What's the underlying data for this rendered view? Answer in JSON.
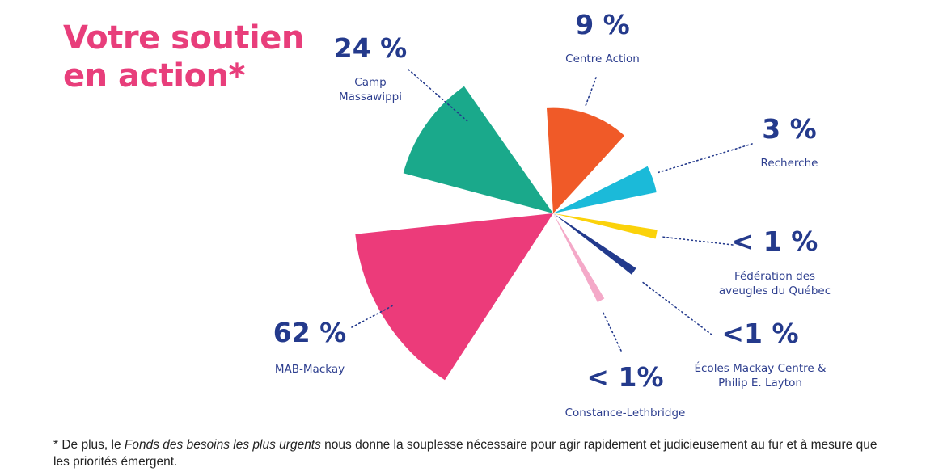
{
  "title": {
    "line1": "Votre soutien",
    "line2": "en action*"
  },
  "chart_data": {
    "type": "pie",
    "title": "Votre soutien en action*",
    "style": "polar-area (wedge radius varies)",
    "slices": [
      {
        "name": "Camp Massawippi",
        "label": "24 %",
        "value": 24,
        "color": "#1aa98b",
        "start_deg": 285,
        "end_deg": 325,
        "rel_radius": 0.78
      },
      {
        "name": "Centre Action",
        "label": "9 %",
        "value": 9,
        "color": "#f05a28",
        "start_deg": 356.5,
        "end_deg": 402.5,
        "rel_radius": 0.53
      },
      {
        "name": "Recherche",
        "label": "3 %",
        "value": 3,
        "color": "#1bbad9",
        "start_deg": 63.5,
        "end_deg": 78.5,
        "rel_radius": 0.53
      },
      {
        "name": "Fédération des aveugles du Québec",
        "label": "< 1 %",
        "value": 1,
        "color": "#fbd20a",
        "start_deg": 99,
        "end_deg": 104,
        "rel_radius": 0.53
      },
      {
        "name": "Écoles Mackay Centre & Philip E. Layton",
        "label": "<1 %",
        "value": 1,
        "color": "#223a8d",
        "start_deg": 123.5,
        "end_deg": 128,
        "rel_radius": 0.5
      },
      {
        "name": "Constance-Lethbridge",
        "label": "< 1%",
        "value": 1,
        "color": "#f4a9c8",
        "start_deg": 149,
        "end_deg": 153.5,
        "rel_radius": 0.5
      },
      {
        "name": "MAB-Mackay",
        "label": "62 %",
        "value": 62,
        "color": "#ec3b7a",
        "start_deg": 213,
        "end_deg": 264,
        "rel_radius": 1.0
      }
    ],
    "annotations": {
      "Camp Massawippi": {
        "pct": "24 %",
        "name_lines": [
          "Camp",
          "Massawippi"
        ]
      },
      "Centre Action": {
        "pct": "9 %",
        "name_lines": [
          "Centre Action"
        ]
      },
      "Recherche": {
        "pct": "3 %",
        "name_lines": [
          "Recherche"
        ]
      },
      "Fédération des aveugles du Québec": {
        "pct": "< 1 %",
        "name_lines": [
          "Fédération des",
          "aveugles du Québec"
        ]
      },
      "Écoles Mackay Centre & Philip E. Layton": {
        "pct": "<1 %",
        "name_lines": [
          "Écoles Mackay Centre &",
          "Philip E. Layton"
        ]
      },
      "Constance-Lethbridge": {
        "pct": "< 1%",
        "name_lines": [
          "Constance-Lethbridge"
        ]
      },
      "MAB-Mackay": {
        "pct": "62 %",
        "name_lines": [
          "MAB-Mackay"
        ]
      }
    },
    "leader_line_color": "#243a8c"
  },
  "footnote": {
    "prefix": "* De plus, le ",
    "italic": "Fonds des besoins les plus urgents",
    "suffix": " nous donne la souplesse nécessaire pour agir rapidement et judicieusement au fur et à mesure que les priorités émergent."
  }
}
